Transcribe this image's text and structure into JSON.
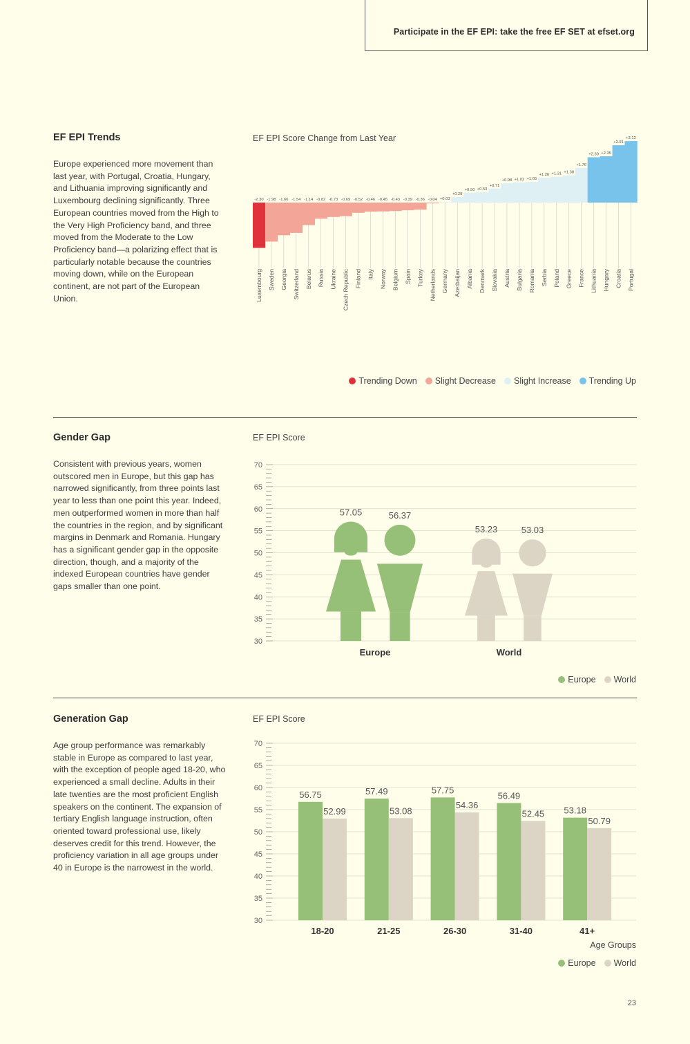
{
  "promo": {
    "text": "Participate in the EF EPI: take the free EF SET at efset.org"
  },
  "trends": {
    "title": "EF EPI Trends",
    "body": "Europe experienced more movement than last year, with Portugal, Croatia, Hungary, and Lithuania improving significantly and Luxembourg declining significantly. Three European countries moved from the High to the Very High Proficiency band, and three moved from the Moderate to the Low Proficiency band—a polarizing effect that is particularly notable because the countries moving down, while on the European continent, are not part of the European Union.",
    "chart_label": "EF EPI Score Change from Last Year",
    "legend": [
      {
        "label": "Trending Down",
        "color": "#e0323a"
      },
      {
        "label": "Slight Decrease",
        "color": "#f3a597"
      },
      {
        "label": "Slight Increase",
        "color": "#dff0f4"
      },
      {
        "label": "Trending Up",
        "color": "#78c3ec"
      }
    ]
  },
  "gender": {
    "title": "Gender Gap",
    "body": "Consistent with previous years, women outscored men in Europe, but this gap has narrowed significantly, from three points last year to less than one point this year. Indeed, men outperformed women in more than half the countries in the region, and by significant margins in Denmark and Romania. Hungary has a significant gender gap in the opposite direction, though, and a majority of the indexed European countries have gender gaps smaller than one point.",
    "chart_label": "EF EPI Score",
    "legend": [
      {
        "label": "Europe",
        "color": "#96bf77"
      },
      {
        "label": "World",
        "color": "#dcd5c5"
      }
    ]
  },
  "generation": {
    "title": "Generation Gap",
    "body": "Age group performance was remarkably stable in Europe as compared to last year, with the exception of people aged 18-20, who experienced a small decline. Adults in their late twenties are the most proficient English speakers on the continent. The expansion of tertiary English language instruction, often oriented toward professional use, likely deserves credit for this trend. However, the proficiency variation in all age groups under 40 in Europe is the narrowest in the world.",
    "chart_label": "EF EPI Score",
    "legend": [
      {
        "label": "Europe",
        "color": "#96bf77"
      },
      {
        "label": "World",
        "color": "#dcd5c5"
      }
    ]
  },
  "page_number": "23",
  "chart_data": [
    {
      "type": "bar",
      "title": "EF EPI Score Change from Last Year",
      "categories": [
        "Luxembourg",
        "Sweden",
        "Georgia",
        "Switzerland",
        "Belarus",
        "Russia",
        "Ukraine",
        "Czech Republic",
        "Finland",
        "Italy",
        "Norway",
        "Belgium",
        "Spain",
        "Turkey",
        "Netherlands",
        "Germany",
        "Azerbaijan",
        "Albania",
        "Denmark",
        "Slovakia",
        "Austria",
        "Bulgaria",
        "Romania",
        "Serbia",
        "Poland",
        "Greece",
        "France",
        "Lithuania",
        "Hungary",
        "Croatia",
        "Portugal"
      ],
      "values": [
        -2.3,
        -1.98,
        -1.66,
        -1.54,
        -1.14,
        -0.82,
        -0.73,
        -0.69,
        -0.52,
        -0.46,
        -0.45,
        -0.43,
        -0.39,
        -0.36,
        -0.04,
        0.03,
        0.28,
        0.5,
        0.53,
        0.71,
        0.98,
        1.02,
        1.05,
        1.26,
        1.31,
        1.38,
        1.76,
        2.3,
        2.35,
        2.91,
        3.12
      ],
      "value_labels": [
        "-2.30",
        "-1.98",
        "-1.66",
        "-1.54",
        "-1.14",
        "-0.82",
        "-0.73",
        "-0.69",
        "-0.52",
        "-0.46",
        "-0.45",
        "-0.43",
        "-0.39",
        "-0.36",
        "-0.04",
        "+0.03",
        "+0.28",
        "+0.50",
        "+0.53",
        "+0.71",
        "+0.98",
        "+1.02",
        "+1.05",
        "+1.26",
        "+1.31",
        "+1.38",
        "+1.76",
        "+2.30",
        "+2.35",
        "+2.91",
        "+3.12"
      ],
      "groups": [
        "Trending Down",
        "Slight Decrease",
        "Slight Decrease",
        "Slight Decrease",
        "Slight Decrease",
        "Slight Decrease",
        "Slight Decrease",
        "Slight Decrease",
        "Slight Decrease",
        "Slight Decrease",
        "Slight Decrease",
        "Slight Decrease",
        "Slight Decrease",
        "Slight Decrease",
        "Slight Decrease",
        "Slight Increase",
        "Slight Increase",
        "Slight Increase",
        "Slight Increase",
        "Slight Increase",
        "Slight Increase",
        "Slight Increase",
        "Slight Increase",
        "Slight Increase",
        "Slight Increase",
        "Slight Increase",
        "Slight Increase",
        "Trending Up",
        "Trending Up",
        "Trending Up",
        "Trending Up"
      ],
      "colors": {
        "Trending Down": "#e0323a",
        "Slight Decrease": "#f3a597",
        "Slight Increase": "#dff0f4",
        "Trending Up": "#78c3ec"
      },
      "grid": false
    },
    {
      "type": "bar",
      "title": "EF EPI Score",
      "categories": [
        "Europe",
        "World"
      ],
      "series": [
        {
          "name": "Europe",
          "values": [
            57.05,
            56.37
          ],
          "color": "#96bf77"
        },
        {
          "name": "World",
          "values": [
            53.23,
            53.03
          ],
          "color": "#dcd5c5"
        }
      ],
      "bar_labels": [
        [
          "57.05",
          "56.37"
        ],
        [
          "53.23",
          "53.03"
        ]
      ],
      "ylim": [
        30,
        70
      ],
      "yticks": [
        70,
        65,
        60,
        55,
        50,
        45,
        40,
        35,
        30
      ],
      "legend": "bottom-right",
      "grid": true
    },
    {
      "type": "bar",
      "title": "EF EPI Score",
      "xlabel": "Age Groups",
      "categories": [
        "18-20",
        "21-25",
        "26-30",
        "31-40",
        "41+"
      ],
      "series": [
        {
          "name": "Europe",
          "values": [
            56.75,
            57.49,
            57.75,
            56.49,
            53.18
          ],
          "labels": [
            "56.75",
            "57.49",
            "57.75",
            "56.49",
            "53.18"
          ],
          "color": "#96bf77"
        },
        {
          "name": "World",
          "values": [
            52.99,
            53.08,
            54.36,
            52.45,
            50.79
          ],
          "labels": [
            "52.99",
            "53.08",
            "54.36",
            "52.45",
            "50.79"
          ],
          "color": "#dcd5c5"
        }
      ],
      "ylim": [
        30,
        70
      ],
      "yticks": [
        70,
        65,
        60,
        55,
        50,
        45,
        40,
        35,
        30
      ],
      "legend": "bottom-right",
      "grid": true
    }
  ]
}
